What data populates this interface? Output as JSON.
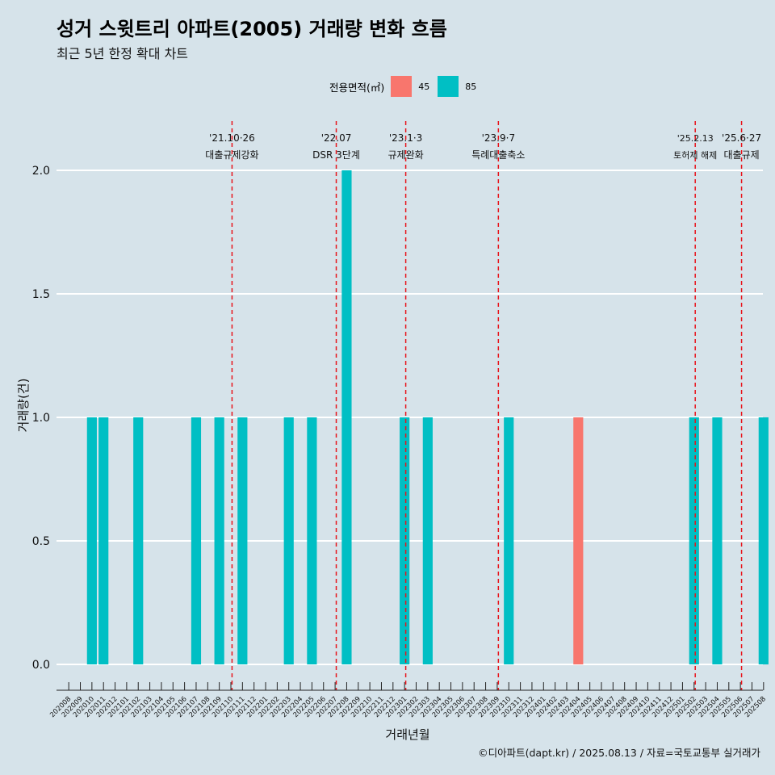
{
  "title": "성거 스윗트리 아파트(2005) 거래량 변화 흐름",
  "subtitle": "최근 5년 한정 확대 차트",
  "caption": "©디아파트(dapt.kr) / 2025.08.13 / 자료=국토교통부 실거래가",
  "legend": {
    "title": "전용면적(㎡)",
    "items": [
      {
        "label": "45",
        "color": "#f8766d"
      },
      {
        "label": "85",
        "color": "#00bfc4"
      }
    ]
  },
  "chart_data": {
    "type": "bar",
    "xlabel": "거래년월",
    "ylabel": "거래량(건)",
    "ylim": [
      0,
      2
    ],
    "yticks": [
      "0.0",
      "0.5",
      "1.0",
      "1.5",
      "2.0"
    ],
    "grid": true,
    "legend_position": "top",
    "categories": [
      "202008",
      "202009",
      "202010",
      "202011",
      "202012",
      "202101",
      "202102",
      "202103",
      "202104",
      "202105",
      "202106",
      "202107",
      "202108",
      "202109",
      "202110",
      "202111",
      "202112",
      "202201",
      "202202",
      "202203",
      "202204",
      "202205",
      "202206",
      "202207",
      "202208",
      "202209",
      "202210",
      "202211",
      "202212",
      "202301",
      "202302",
      "202303",
      "202304",
      "202305",
      "202306",
      "202307",
      "202308",
      "202309",
      "202310",
      "202311",
      "202312",
      "202401",
      "202402",
      "202403",
      "202404",
      "202405",
      "202406",
      "202407",
      "202408",
      "202409",
      "202410",
      "202411",
      "202412",
      "202501",
      "202502",
      "202503",
      "202504",
      "202505",
      "202506",
      "202507",
      "202508"
    ],
    "series": [
      {
        "name": "45",
        "color": "#f8766d",
        "values": [
          0,
          0,
          0,
          0,
          0,
          0,
          0,
          0,
          0,
          0,
          0,
          0,
          0,
          0,
          0,
          0,
          0,
          0,
          0,
          0,
          0,
          0,
          0,
          0,
          0,
          0,
          0,
          0,
          0,
          0,
          0,
          0,
          0,
          0,
          0,
          0,
          0,
          0,
          0,
          0,
          0,
          0,
          0,
          0,
          1,
          0,
          0,
          0,
          0,
          0,
          0,
          0,
          0,
          0,
          0,
          0,
          0,
          0,
          0,
          0,
          0
        ]
      },
      {
        "name": "85",
        "color": "#00bfc4",
        "values": [
          0,
          0,
          1,
          1,
          0,
          0,
          1,
          0,
          0,
          0,
          0,
          1,
          0,
          1,
          0,
          1,
          0,
          0,
          0,
          1,
          0,
          1,
          0,
          0,
          2,
          0,
          0,
          0,
          0,
          1,
          0,
          1,
          0,
          0,
          0,
          0,
          0,
          0,
          1,
          0,
          0,
          0,
          0,
          0,
          0,
          0,
          0,
          0,
          0,
          0,
          0,
          0,
          0,
          0,
          1,
          0,
          1,
          0,
          0,
          0,
          1
        ]
      }
    ],
    "annotations": [
      {
        "date": "'21.10·26",
        "label": "대출규제강화",
        "after": "202110",
        "small": false
      },
      {
        "date": "'22.07",
        "label": "DSR 3단계",
        "after": "202207",
        "small": false
      },
      {
        "date": "'23.1·3",
        "label": "규제완화",
        "after": "202301",
        "small": false
      },
      {
        "date": "'23.9·7",
        "label": "특례대출축소",
        "after": "202309",
        "small": false
      },
      {
        "date": "'25.2.13",
        "label": "토허제 해제",
        "after": "202502",
        "small": true
      },
      {
        "date": "'25.6·27",
        "label": "대출규제",
        "after": "202506",
        "small": false
      }
    ]
  }
}
